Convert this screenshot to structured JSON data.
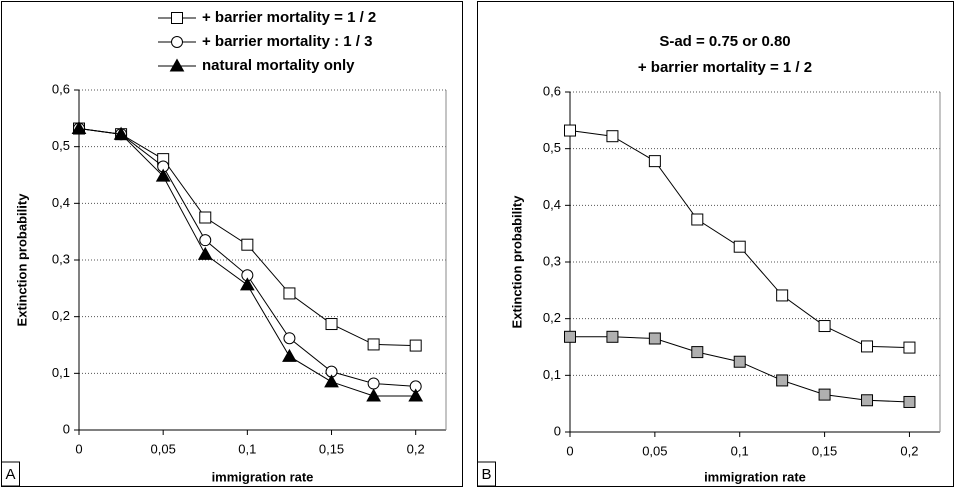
{
  "chart_data": [
    {
      "type": "line",
      "panel_label": "A",
      "x_label": "immigration rate",
      "y_label": "Extinction probability",
      "x": [
        0,
        0.025,
        0.05,
        0.075,
        0.1,
        0.125,
        0.15,
        0.175,
        0.2
      ],
      "series": [
        {
          "name": "+ barrier mortality = 1 / 2",
          "color": "#000000",
          "marker": "square",
          "marker_fill": "#ffffff",
          "values": [
            0.532,
            0.522,
            0.478,
            0.375,
            0.327,
            0.241,
            0.187,
            0.151,
            0.149
          ]
        },
        {
          "name": "+ barrier mortality : 1 / 3",
          "color": "#000000",
          "marker": "circle",
          "marker_fill": "#ffffff",
          "values": [
            0.532,
            0.522,
            0.465,
            0.335,
            0.273,
            0.162,
            0.103,
            0.082,
            0.077
          ]
        },
        {
          "name": "natural mortality only",
          "color": "#000000",
          "marker": "triangle",
          "marker_fill": "#000000",
          "values": [
            0.532,
            0.522,
            0.448,
            0.31,
            0.256,
            0.13,
            0.085,
            0.06,
            0.06
          ]
        }
      ],
      "xlim": [
        0,
        0.218
      ],
      "ylim": [
        0,
        0.6
      ],
      "xticks": [
        0,
        {
          "value": 0.05,
          "label": "0,05"
        },
        {
          "value": 0.1,
          "label": "0,1"
        },
        {
          "value": 0.15,
          "label": "0,15"
        },
        {
          "value": 0.2,
          "label": "0,2"
        }
      ],
      "yticks": [
        0,
        {
          "value": 0.1,
          "label": "0,1"
        },
        {
          "value": 0.2,
          "label": "0,2"
        },
        {
          "value": 0.3,
          "label": "0,3"
        },
        {
          "value": 0.4,
          "label": "0,4"
        },
        {
          "value": 0.5,
          "label": "0,5"
        },
        {
          "value": 0.6,
          "label": "0,6"
        }
      ],
      "grid": true,
      "legend": "top"
    },
    {
      "type": "line",
      "panel_label": "B",
      "title": "S-ad = 0.75 or 0.80",
      "subtitle": "+ barrier mortality = 1 / 2",
      "x_label": "immigration rate",
      "y_label": "Extinction probability",
      "x": [
        0,
        0.025,
        0.05,
        0.075,
        0.1,
        0.125,
        0.15,
        0.175,
        0.2
      ],
      "series": [
        {
          "color": "#000000",
          "marker": "square",
          "marker_fill": "#ffffff",
          "values": [
            0.532,
            0.522,
            0.478,
            0.375,
            0.327,
            0.241,
            0.187,
            0.151,
            0.149
          ]
        },
        {
          "color": "#000000",
          "marker": "square",
          "marker_fill": "#b0b0b0",
          "values": [
            0.168,
            0.168,
            0.165,
            0.141,
            0.124,
            0.091,
            0.066,
            0.056,
            0.053
          ]
        }
      ],
      "xlim": [
        0,
        0.218
      ],
      "ylim": [
        0,
        0.6
      ],
      "xticks": [
        0,
        {
          "value": 0.05,
          "label": "0,05"
        },
        {
          "value": 0.1,
          "label": "0,1"
        },
        {
          "value": 0.15,
          "label": "0,15"
        },
        {
          "value": 0.2,
          "label": "0,2"
        }
      ],
      "yticks": [
        0,
        {
          "value": 0.1,
          "label": "0,1"
        },
        {
          "value": 0.2,
          "label": "0,2"
        },
        {
          "value": 0.3,
          "label": "0,3"
        },
        {
          "value": 0.4,
          "label": "0,4"
        },
        {
          "value": 0.5,
          "label": "0,5"
        },
        {
          "value": 0.6,
          "label": "0,6"
        }
      ],
      "grid": true
    }
  ]
}
